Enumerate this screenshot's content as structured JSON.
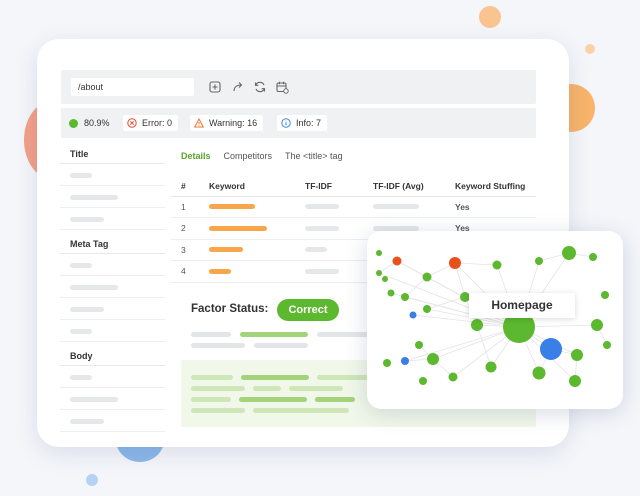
{
  "url": "/about",
  "status": {
    "score": "80.9%",
    "error": "Error: 0",
    "warning": "Warning: 16",
    "info": "Info: 7",
    "colors": {
      "score": "#5cb82e",
      "error": "#e24a2c",
      "warning": "#f0782a",
      "info": "#3a8ed8"
    }
  },
  "toolbar_icons": [
    "add-icon",
    "share-icon",
    "refresh-icon",
    "calendar-settings-icon"
  ],
  "sidebar": {
    "sections": [
      {
        "title": "Title"
      },
      {
        "title": "Meta Tag"
      },
      {
        "title": "Body"
      }
    ]
  },
  "tabs": [
    "Details",
    "Competitors",
    "The <title> tag"
  ],
  "table": {
    "headers": [
      "#",
      "Keyword",
      "TF-IDF",
      "TF-IDF (Avg)",
      "Keyword Stuffing"
    ],
    "rows": [
      {
        "num": "1",
        "stuffing": "Yes"
      },
      {
        "num": "2",
        "stuffing": "Yes"
      },
      {
        "num": "3",
        "stuffing": ""
      },
      {
        "num": "4",
        "stuffing": ""
      }
    ]
  },
  "factor": {
    "label": "Factor Status:",
    "status": "Correct"
  },
  "graph": {
    "label": "Homepage"
  },
  "colors": {
    "accent_green": "#5cb82e",
    "orange": "#f7a74a",
    "red": "#e8501c",
    "blue": "#3a7ee8"
  }
}
